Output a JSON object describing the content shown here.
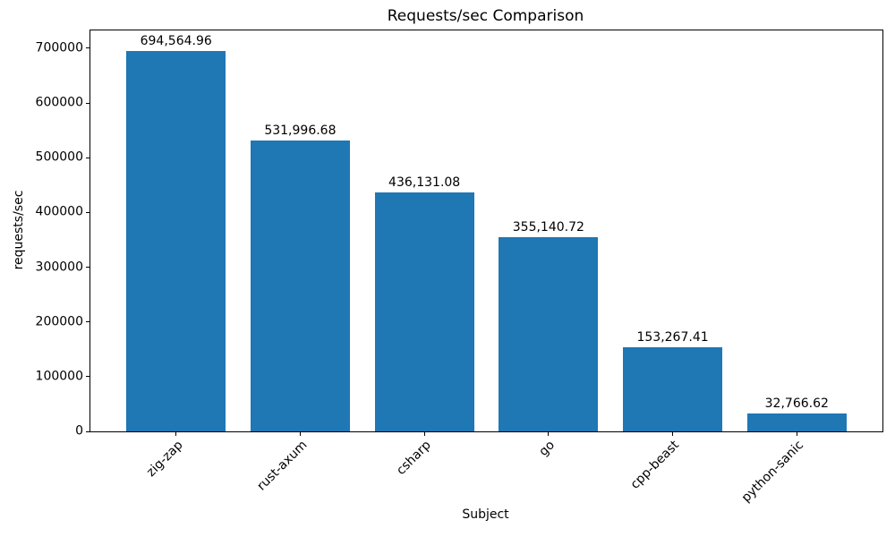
{
  "chart_data": {
    "type": "bar",
    "title": "Requests/sec Comparison",
    "xlabel": "Subject",
    "ylabel": "requests/sec",
    "categories": [
      "zig-zap",
      "rust-axum",
      "csharp",
      "go",
      "cpp-beast",
      "python-sanic"
    ],
    "values": [
      694564.96,
      531996.68,
      436131.08,
      355140.72,
      153267.41,
      32766.62
    ],
    "value_labels": [
      "694,564.96",
      "531,996.68",
      "436,131.08",
      "355,140.72",
      "153,267.41",
      "32,766.62"
    ],
    "yticks": [
      0,
      100000,
      200000,
      300000,
      400000,
      500000,
      600000,
      700000
    ],
    "ytick_labels": [
      "0",
      "100000",
      "200000",
      "300000",
      "400000",
      "500000",
      "600000",
      "700000"
    ],
    "ylim": [
      0,
      732600
    ],
    "xtick_rotation": 45,
    "bar_width_fraction": 0.8,
    "bar_color": "#1f77b4",
    "spine_color": "#000000",
    "text_color": "#000000",
    "grid": false,
    "legend_position": "none"
  }
}
